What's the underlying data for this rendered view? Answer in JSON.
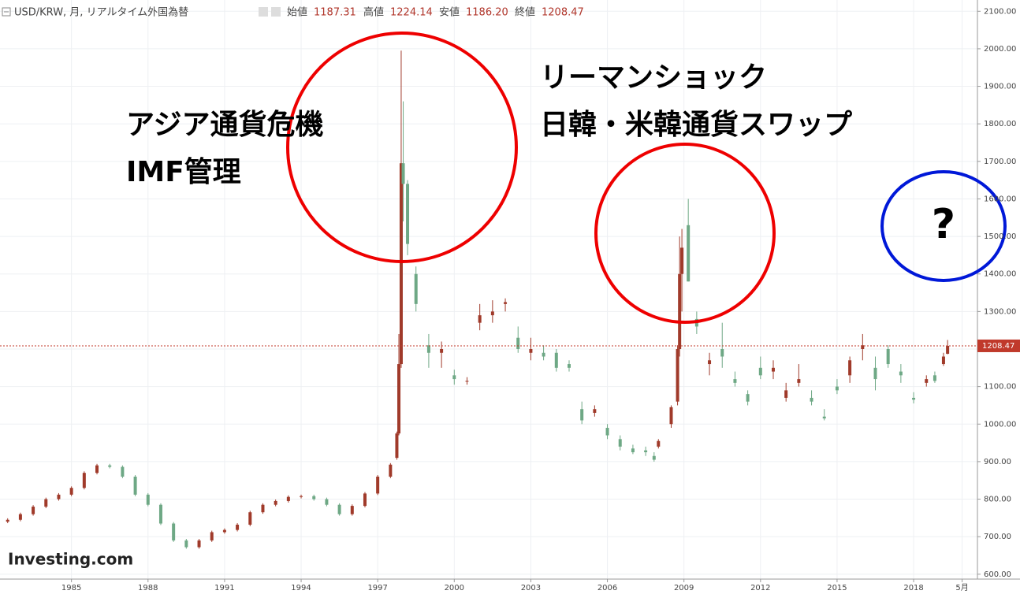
{
  "header": {
    "symbol": "USD/KRW, 月, リアルタイム外国為替",
    "open_label": "始値",
    "open": "1187.31",
    "high_label": "高値",
    "high": "1224.14",
    "low_label": "安値",
    "low": "1186.20",
    "close_label": "終値",
    "close": "1208.47"
  },
  "chart_data": {
    "type": "candlestick",
    "annotations": [
      "アジア通貨危機",
      "IMF管理",
      "リーマンショック",
      "日韓・米韓通貨スワップ",
      "?"
    ],
    "logo": "Investing.com",
    "up_color": "#a03a2a",
    "down_color": "#6ea885",
    "last_price": 1208.47,
    "x": [
      1982.5,
      1983,
      1983.5,
      1984,
      1984.5,
      1985,
      1985.5,
      1986,
      1986.5,
      1987,
      1987.5,
      1988,
      1988.5,
      1989,
      1989.5,
      1990,
      1990.5,
      1991,
      1991.5,
      1992,
      1992.5,
      1993,
      1993.5,
      1994,
      1994.5,
      1995,
      1995.5,
      1996,
      1996.5,
      1997,
      1997.5,
      1997.75,
      1997.83,
      1997.92,
      1998,
      1998.17,
      1998.5,
      1999,
      1999.5,
      2000,
      2000.5,
      2001,
      2001.5,
      2002,
      2002.5,
      2003,
      2003.5,
      2004,
      2004.5,
      2005,
      2005.5,
      2006,
      2006.5,
      2007,
      2007.5,
      2007.83,
      2008,
      2008.5,
      2008.75,
      2008.83,
      2008.92,
      2009.17,
      2009.5,
      2010,
      2010.5,
      2011,
      2011.5,
      2012,
      2012.5,
      2013,
      2013.5,
      2014,
      2014.5,
      2015,
      2015.5,
      2016,
      2016.5,
      2017,
      2017.5,
      2018,
      2018.5,
      2018.83,
      2019.17,
      2019.33
    ],
    "open": [
      740,
      745,
      760,
      780,
      800,
      812,
      830,
      870,
      890,
      886,
      860,
      812,
      785,
      735,
      690,
      672,
      690,
      712,
      718,
      732,
      765,
      785,
      795,
      806,
      808,
      800,
      785,
      760,
      782,
      815,
      860,
      910,
      975,
      1160,
      1695,
      1640,
      1400,
      1210,
      1190,
      1130,
      1115,
      1270,
      1290,
      1320,
      1230,
      1190,
      1190,
      1190,
      1160,
      1040,
      1030,
      990,
      960,
      935,
      930,
      915,
      940,
      1000,
      1060,
      1200,
      1400,
      1530,
      1280,
      1160,
      1200,
      1120,
      1080,
      1150,
      1140,
      1070,
      1110,
      1070,
      1020,
      1100,
      1130,
      1200,
      1150,
      1200,
      1140,
      1070,
      1110,
      1130,
      1160,
      1187.31
    ],
    "high": [
      749,
      764,
      784,
      804,
      816,
      834,
      874,
      894,
      894,
      890,
      864,
      816,
      789,
      739,
      694,
      694,
      716,
      722,
      736,
      769,
      789,
      799,
      810,
      812,
      812,
      804,
      789,
      786,
      819,
      864,
      896,
      980,
      1240,
      1995,
      1860,
      1650,
      1420,
      1240,
      1220,
      1145,
      1125,
      1320,
      1330,
      1335,
      1260,
      1230,
      1210,
      1200,
      1170,
      1060,
      1050,
      1000,
      970,
      945,
      940,
      925,
      960,
      1050,
      1210,
      1500,
      1520,
      1600,
      1300,
      1190,
      1270,
      1140,
      1090,
      1180,
      1170,
      1110,
      1160,
      1090,
      1040,
      1120,
      1180,
      1240,
      1180,
      1210,
      1160,
      1085,
      1130,
      1140,
      1190,
      1224.14
    ],
    "low": [
      736,
      741,
      756,
      776,
      796,
      808,
      826,
      866,
      882,
      856,
      808,
      781,
      731,
      686,
      668,
      668,
      686,
      708,
      714,
      728,
      761,
      781,
      791,
      802,
      796,
      781,
      756,
      756,
      778,
      811,
      856,
      905,
      970,
      1150,
      1540,
      1450,
      1300,
      1150,
      1150,
      1105,
      1105,
      1250,
      1270,
      1300,
      1190,
      1170,
      1170,
      1140,
      1140,
      1000,
      1020,
      960,
      930,
      920,
      915,
      900,
      935,
      990,
      1050,
      1180,
      1300,
      1380,
      1240,
      1130,
      1150,
      1100,
      1050,
      1120,
      1120,
      1060,
      1100,
      1050,
      1010,
      1080,
      1110,
      1170,
      1090,
      1150,
      1110,
      1055,
      1100,
      1110,
      1155,
      1186.2
    ],
    "close": [
      745,
      760,
      780,
      800,
      812,
      830,
      870,
      890,
      886,
      860,
      812,
      785,
      735,
      690,
      672,
      690,
      712,
      718,
      732,
      765,
      785,
      795,
      806,
      808,
      800,
      785,
      760,
      782,
      815,
      860,
      892,
      975,
      1160,
      1695,
      1640,
      1480,
      1320,
      1190,
      1200,
      1120,
      1115,
      1290,
      1300,
      1325,
      1200,
      1200,
      1180,
      1150,
      1150,
      1010,
      1040,
      970,
      940,
      925,
      925,
      905,
      955,
      1045,
      1200,
      1400,
      1470,
      1380,
      1260,
      1170,
      1180,
      1110,
      1060,
      1130,
      1150,
      1090,
      1120,
      1060,
      1015,
      1090,
      1170,
      1210,
      1120,
      1160,
      1130,
      1065,
      1120,
      1115,
      1180,
      1208.47
    ],
    "xlim": [
      1982.2,
      2020.5
    ],
    "ylim": [
      587,
      2130
    ],
    "xticks": [
      1985,
      1988,
      1991,
      1994,
      1997,
      2000,
      2003,
      2006,
      2009,
      2012,
      2015,
      2018,
      {
        "value": 2019.9,
        "label": "5月"
      }
    ],
    "yticks": [
      {
        "value": 600,
        "label": "600.00"
      },
      {
        "value": 700,
        "label": "700.00"
      },
      {
        "value": 800,
        "label": "800.00"
      },
      {
        "value": 900,
        "label": "900.00"
      },
      {
        "value": 1000,
        "label": "1000.00"
      },
      {
        "value": 1100,
        "label": "1100.00"
      },
      {
        "value": 1200,
        "label": "1200.00"
      },
      {
        "value": 1300,
        "label": "1300.00"
      },
      {
        "value": 1400,
        "label": "1400.00"
      },
      {
        "value": 1500,
        "label": "1500.00"
      },
      {
        "value": 1600,
        "label": "1600.00"
      },
      {
        "value": 1700,
        "label": "1700.00"
      },
      {
        "value": 1800,
        "label": "1800.00"
      },
      {
        "value": 1900,
        "label": "1900.00"
      },
      {
        "value": 2000,
        "label": "2000.00"
      },
      {
        "value": 2100,
        "label": "2100.00"
      }
    ],
    "grid": true
  }
}
